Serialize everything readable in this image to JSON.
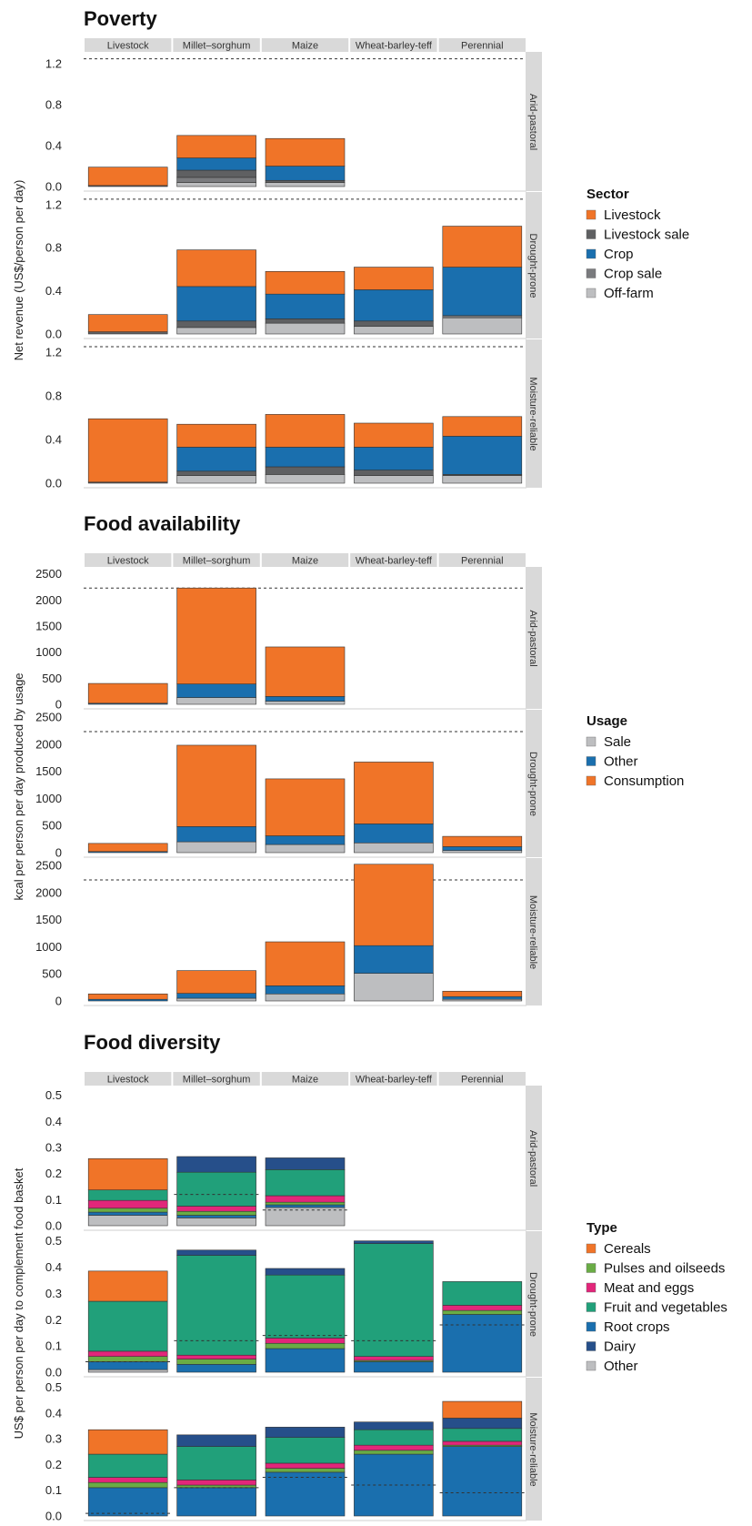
{
  "colors": {
    "orange": "#f07428",
    "dark_gray": "#5f6062",
    "mid_gray": "#7a7b7e",
    "light_gray": "#bdbec0",
    "blue": "#1a6fae",
    "green": "#6aac45",
    "magenta": "#e2267a",
    "teal_green": "#21a07a",
    "navy": "#264f8a",
    "strip_bg": "#d9d9d9"
  },
  "chart_data": [
    {
      "type": "bar",
      "stacked": true,
      "title": "Poverty",
      "ylabel": "Net revenue (US$/person per day)",
      "ylim": [
        0,
        1.3
      ],
      "yticks": [
        0,
        0.4,
        0.8,
        1.2
      ],
      "ytick_labels": [
        "0.0",
        "0.4",
        "0.8",
        "1.2"
      ],
      "categories": [
        "Livestock",
        "Millet–sorghum",
        "Maize",
        "Wheat-barley-teff",
        "Perennial"
      ],
      "rows": [
        "Arid-pastoral",
        "Drought-prone",
        "Moisture-reliable"
      ],
      "reference_line": 1.25,
      "legend": {
        "title": "Sector",
        "items": [
          {
            "label": "Livestock",
            "color": "#f07428"
          },
          {
            "label": "Livestock sale",
            "color": "#5f6062"
          },
          {
            "label": "Crop",
            "color": "#1a6fae"
          },
          {
            "label": "Crop sale",
            "color": "#7a7b7e"
          },
          {
            "label": "Off-farm",
            "color": "#bdbec0"
          }
        ]
      },
      "stack_order": [
        "Off-farm",
        "Crop sale",
        "Livestock sale",
        "Crop",
        "Livestock"
      ],
      "series_colors": [
        "#bdbec0",
        "#7a7b7e",
        "#5f6062",
        "#1a6fae",
        "#f07428"
      ],
      "values": [
        [
          [
            0,
            0,
            0.01,
            0,
            0.18
          ],
          [
            0.04,
            0.05,
            0.07,
            0.12,
            0.22
          ],
          [
            0.04,
            0,
            0.02,
            0.14,
            0.27
          ],
          null,
          null
        ],
        [
          [
            0,
            0,
            0.02,
            0,
            0.16
          ],
          [
            0.06,
            0,
            0.06,
            0.32,
            0.34
          ],
          [
            0.1,
            0,
            0.04,
            0.23,
            0.21
          ],
          [
            0.07,
            0,
            0.05,
            0.29,
            0.21
          ],
          [
            0.15,
            0.02,
            0,
            0.45,
            0.38
          ]
        ],
        [
          [
            0,
            0,
            0.01,
            0,
            0.58
          ],
          [
            0.07,
            0,
            0.04,
            0.22,
            0.21
          ],
          [
            0.08,
            0,
            0.07,
            0.18,
            0.3
          ],
          [
            0.07,
            0,
            0.05,
            0.21,
            0.22
          ],
          [
            0.07,
            0,
            0.01,
            0.35,
            0.18
          ]
        ]
      ]
    },
    {
      "type": "bar",
      "stacked": true,
      "title": "Food availability",
      "ylabel": "kcal per person per day produced by usage",
      "ylim": [
        0,
        2600
      ],
      "yticks": [
        0,
        500,
        1000,
        1500,
        2000,
        2500
      ],
      "ytick_labels": [
        "0",
        "500",
        "1000",
        "1500",
        "2000",
        "2500"
      ],
      "categories": [
        "Livestock",
        "Millet–sorghum",
        "Maize",
        "Wheat-barley-teff",
        "Perennial"
      ],
      "rows": [
        "Arid-pastoral",
        "Drought-prone",
        "Moisture-reliable"
      ],
      "reference_line": 2230,
      "legend": {
        "title": "Usage",
        "items": [
          {
            "label": "Sale",
            "color": "#bdbec0"
          },
          {
            "label": "Other",
            "color": "#1a6fae"
          },
          {
            "label": "Consumption",
            "color": "#f07428"
          }
        ]
      },
      "stack_order": [
        "Sale",
        "Other",
        "Consumption"
      ],
      "series_colors": [
        "#bdbec0",
        "#1a6fae",
        "#f07428"
      ],
      "values": [
        [
          [
            0,
            20,
            380
          ],
          [
            130,
            260,
            1840
          ],
          [
            60,
            90,
            950
          ],
          null,
          null
        ],
        [
          [
            0,
            20,
            150
          ],
          [
            200,
            280,
            1500
          ],
          [
            150,
            160,
            1050
          ],
          [
            180,
            350,
            1140
          ],
          [
            40,
            70,
            190
          ]
        ],
        [
          [
            0,
            30,
            100
          ],
          [
            50,
            90,
            420
          ],
          [
            130,
            150,
            810
          ],
          [
            510,
            510,
            1500
          ],
          [
            30,
            50,
            100
          ]
        ]
      ]
    },
    {
      "type": "bar",
      "stacked": true,
      "title": "Food diversity",
      "ylabel": "US$ per person per day to complement food basket",
      "ylim": [
        0,
        0.53
      ],
      "yticks": [
        0,
        0.1,
        0.2,
        0.3,
        0.4,
        0.5
      ],
      "ytick_labels": [
        "0.0",
        "0.1",
        "0.2",
        "0.3",
        "0.4",
        "0.5"
      ],
      "categories": [
        "Livestock",
        "Millet–sorghum",
        "Maize",
        "Wheat-barley-teff",
        "Perennial"
      ],
      "rows": [
        "Arid-pastoral",
        "Drought-prone",
        "Moisture-reliable"
      ],
      "legend": {
        "title": "Type",
        "items": [
          {
            "label": "Cereals",
            "color": "#f07428"
          },
          {
            "label": "Pulses and oilseeds",
            "color": "#6aac45"
          },
          {
            "label": "Meat and eggs",
            "color": "#e2267a"
          },
          {
            "label": "Fruit and vegetables",
            "color": "#21a07a"
          },
          {
            "label": "Root crops",
            "color": "#1a6fae"
          },
          {
            "label": "Dairy",
            "color": "#264f8a"
          },
          {
            "label": "Other",
            "color": "#bdbec0"
          }
        ]
      },
      "stack_order": [
        "Other",
        "Root crops",
        "Pulses and oilseeds",
        "Meat and eggs",
        "Fruit and vegetables",
        "Dairy",
        "Cereals"
      ],
      "series_colors": [
        "#bdbec0",
        "#1a6fae",
        "#6aac45",
        "#e2267a",
        "#21a07a",
        "#264f8a",
        "#f07428"
      ],
      "values": [
        [
          [
            0.04,
            0.012,
            0.015,
            0.03,
            0.04,
            0,
            0.12
          ],
          [
            0.03,
            0.01,
            0.015,
            0.02,
            0.13,
            0.06,
            0
          ],
          [
            0.07,
            0.01,
            0.01,
            0.025,
            0.1,
            0.045,
            0
          ],
          null,
          null
        ],
        [
          [
            0.01,
            0.03,
            0.02,
            0.02,
            0.19,
            0,
            0.115
          ],
          [
            0,
            0.03,
            0.02,
            0.015,
            0.38,
            0.02,
            0
          ],
          [
            0,
            0.09,
            0.02,
            0.02,
            0.24,
            0.025,
            0
          ],
          [
            0,
            0.04,
            0.005,
            0.015,
            0.43,
            0.01,
            0
          ],
          [
            0,
            0.22,
            0.015,
            0.02,
            0.09,
            0,
            0
          ]
        ],
        [
          [
            0,
            0.11,
            0.02,
            0.02,
            0.09,
            0,
            0.095
          ],
          [
            0,
            0.11,
            0.01,
            0.02,
            0.13,
            0.045,
            0
          ],
          [
            0,
            0.17,
            0.015,
            0.02,
            0.1,
            0.04,
            0
          ],
          [
            0,
            0.24,
            0.015,
            0.02,
            0.06,
            0.03,
            0
          ],
          [
            0,
            0.27,
            0.005,
            0.015,
            0.05,
            0.04,
            0.065
          ]
        ]
      ],
      "reference_lines": [
        [
          null,
          0.12,
          0.06,
          null,
          null
        ],
        [
          0.04,
          0.12,
          0.14,
          0.12,
          0.18
        ],
        [
          0.01,
          0.11,
          0.15,
          0.12,
          0.09
        ]
      ]
    }
  ]
}
